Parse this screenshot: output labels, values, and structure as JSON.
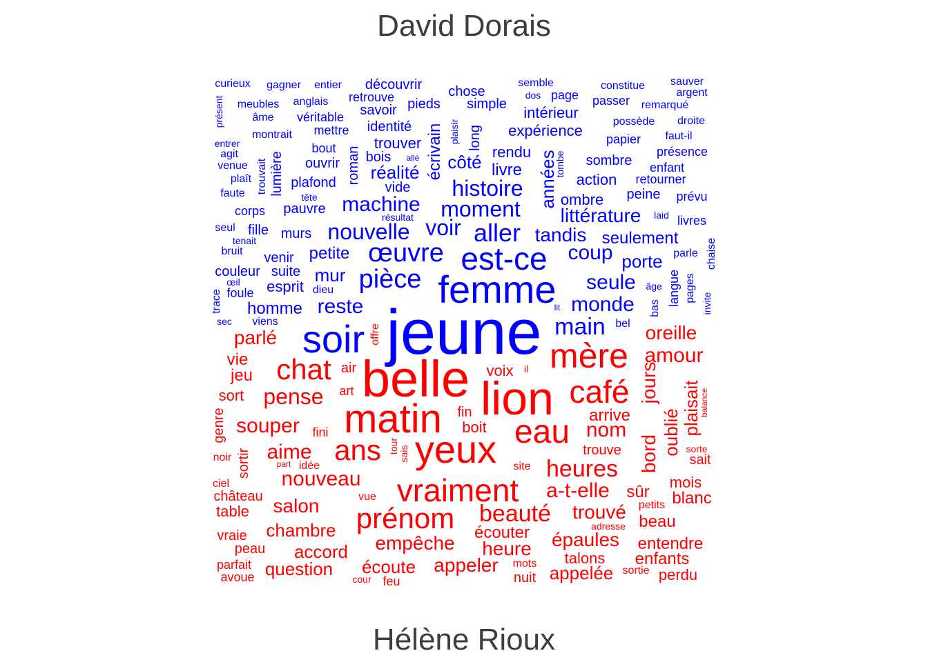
{
  "chart_data": {
    "type": "comparison_wordcloud",
    "title_top": "David Dorais",
    "title_bottom": "Hélène Rioux",
    "series": [
      {
        "name": "David Dorais",
        "color": "#0000ff",
        "words": [
          "jeune",
          "femme",
          "est-ce",
          "pièce",
          "œuvre",
          "nouvelle",
          "aller",
          "voir",
          "machine",
          "moment",
          "histoire",
          "soir",
          "main",
          "monde",
          "seule",
          "coup",
          "tandis",
          "littérature",
          "années",
          "réalité",
          "écrivain",
          "côté",
          "seulement",
          "porte",
          "reste",
          "homme",
          "mur",
          "petite",
          "esprit",
          "suite",
          "couleur",
          "venir",
          "murs",
          "fille",
          "pauvre",
          "corps",
          "plafond",
          "ouvrir",
          "lumière",
          "trouver",
          "bois",
          "roman",
          "vide",
          "rendu",
          "livre",
          "long",
          "expérience",
          "intérieur",
          "action",
          "sombre",
          "ombre",
          "peine",
          "retourner",
          "enfant",
          "présence",
          "papier",
          "faut-il",
          "possède",
          "droite",
          "passer",
          "remarqué",
          "constitue",
          "sauver",
          "argent",
          "semble",
          "dos",
          "page",
          "chose",
          "simple",
          "pieds",
          "découvrir",
          "retrouve",
          "savoir",
          "identité",
          "mettre",
          "véritable",
          "anglais",
          "gagner",
          "entier",
          "curieux",
          "meubles",
          "âme",
          "montrait",
          "bout",
          "entrer",
          "agit",
          "venue",
          "plaît",
          "faute",
          "trouvait",
          "tête",
          "résultat",
          "allé",
          "plaisir",
          "tombe",
          "prévu",
          "laid",
          "livres",
          "chaise",
          "parle",
          "langue",
          "pages",
          "âge",
          "bas",
          "invite",
          "lit",
          "bel",
          "viens",
          "sec",
          "trace",
          "œil",
          "foule",
          "dieu",
          "bruit",
          "tenait",
          "seul",
          "présent"
        ]
      },
      {
        "name": "Hélène Rioux",
        "color": "#ff0000",
        "words": [
          "belle",
          "lion",
          "matin",
          "yeux",
          "mère",
          "café",
          "eau",
          "ans",
          "chat",
          "vraiment",
          "prénom",
          "beauté",
          "heures",
          "a-t-elle",
          "trouvé",
          "pense",
          "souper",
          "aime",
          "nouveau",
          "salon",
          "chambre",
          "accord",
          "question",
          "empêche",
          "écoute",
          "appeler",
          "heure",
          "écouter",
          "épaules",
          "talons",
          "appelée",
          "nuit",
          "mots",
          "feu",
          "cour",
          "oreille",
          "amour",
          "jours",
          "bord",
          "oublié",
          "plaisait",
          "arrive",
          "nom",
          "trouve",
          "sûr",
          "mois",
          "blanc",
          "beau",
          "entendre",
          "enfants",
          "perdu",
          "sortie",
          "adresse",
          "petits",
          "parlé",
          "vie",
          "jeu",
          "sort",
          "genre",
          "noir",
          "sortir",
          "ciel",
          "château",
          "table",
          "vraie",
          "peau",
          "parfait",
          "avoue",
          "fini",
          "air",
          "art",
          "fin",
          "boit",
          "voix",
          "il",
          "offre",
          "tour",
          "sais",
          "site",
          "vue",
          "idée",
          "part",
          "sait",
          "sorte",
          "balance"
        ]
      }
    ]
  }
}
